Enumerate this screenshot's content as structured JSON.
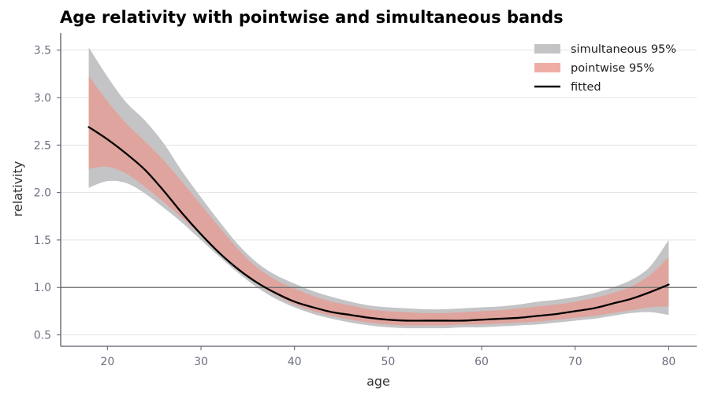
{
  "chart_data": {
    "type": "line",
    "title": "Age relativity with pointwise and simultaneous bands",
    "xlabel": "age",
    "ylabel": "relativity",
    "xlim": [
      15,
      83
    ],
    "ylim": [
      0.38,
      3.68
    ],
    "x_ticks": [
      20,
      30,
      40,
      50,
      60,
      70,
      80
    ],
    "y_ticks": [
      0.5,
      1.0,
      1.5,
      2.0,
      2.5,
      3.0,
      3.5
    ],
    "x_tick_labels": [
      "20",
      "30",
      "40",
      "50",
      "60",
      "70",
      "80"
    ],
    "y_tick_labels": [
      "0.5",
      "1.0",
      "1.5",
      "2.0",
      "2.5",
      "3.0",
      "3.5"
    ],
    "reference_line": 1.0,
    "grid": "horizontal",
    "legend_position": "top-right",
    "colors": {
      "simultaneous": "#c4c4c6",
      "pointwise": "#e8998f",
      "fitted": "#000000",
      "reference": "#6e6e6e",
      "grid": "#e3e3e3",
      "axis": "#5a5a6e"
    },
    "x": [
      18,
      20,
      22,
      24,
      26,
      28,
      30,
      32,
      34,
      36,
      38,
      40,
      42,
      44,
      46,
      48,
      50,
      52,
      54,
      56,
      58,
      60,
      62,
      64,
      66,
      68,
      70,
      72,
      74,
      76,
      78,
      80
    ],
    "series": [
      {
        "name": "simultaneous 95%",
        "kind": "band",
        "lower": [
          2.05,
          2.12,
          2.1,
          1.99,
          1.84,
          1.68,
          1.5,
          1.32,
          1.15,
          1.0,
          0.88,
          0.79,
          0.72,
          0.67,
          0.63,
          0.6,
          0.58,
          0.57,
          0.57,
          0.57,
          0.58,
          0.58,
          0.59,
          0.6,
          0.61,
          0.63,
          0.65,
          0.67,
          0.7,
          0.73,
          0.74,
          0.71
        ],
        "upper": [
          3.53,
          3.22,
          2.95,
          2.76,
          2.52,
          2.22,
          1.95,
          1.69,
          1.45,
          1.26,
          1.13,
          1.04,
          0.96,
          0.9,
          0.85,
          0.81,
          0.79,
          0.78,
          0.77,
          0.77,
          0.78,
          0.79,
          0.8,
          0.82,
          0.85,
          0.87,
          0.9,
          0.94,
          1.0,
          1.08,
          1.22,
          1.5
        ]
      },
      {
        "name": "pointwise 95%",
        "kind": "band",
        "lower": [
          2.25,
          2.27,
          2.2,
          2.06,
          1.9,
          1.73,
          1.55,
          1.37,
          1.19,
          1.04,
          0.92,
          0.82,
          0.75,
          0.7,
          0.66,
          0.63,
          0.61,
          0.6,
          0.6,
          0.6,
          0.61,
          0.61,
          0.62,
          0.63,
          0.64,
          0.66,
          0.68,
          0.7,
          0.73,
          0.76,
          0.79,
          0.8
        ],
        "upper": [
          3.23,
          2.96,
          2.73,
          2.54,
          2.34,
          2.11,
          1.87,
          1.63,
          1.4,
          1.21,
          1.08,
          0.99,
          0.91,
          0.85,
          0.81,
          0.77,
          0.75,
          0.74,
          0.73,
          0.73,
          0.74,
          0.75,
          0.76,
          0.78,
          0.8,
          0.82,
          0.85,
          0.89,
          0.94,
          1.01,
          1.13,
          1.32
        ]
      },
      {
        "name": "fitted",
        "kind": "line",
        "values": [
          2.69,
          2.56,
          2.41,
          2.24,
          2.02,
          1.78,
          1.56,
          1.36,
          1.19,
          1.05,
          0.94,
          0.85,
          0.79,
          0.74,
          0.71,
          0.68,
          0.66,
          0.65,
          0.65,
          0.65,
          0.65,
          0.66,
          0.67,
          0.68,
          0.7,
          0.72,
          0.75,
          0.78,
          0.83,
          0.88,
          0.95,
          1.03
        ]
      }
    ]
  }
}
